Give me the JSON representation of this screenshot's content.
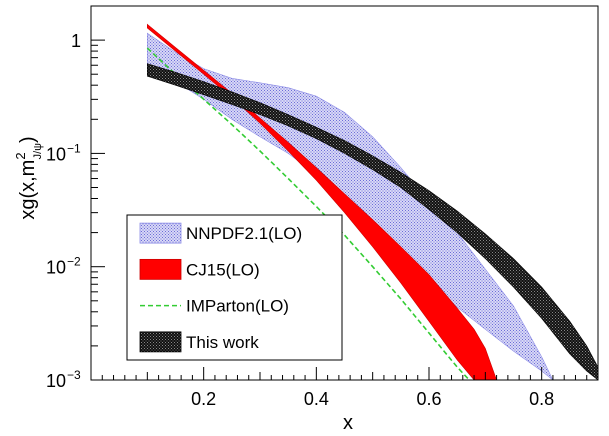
{
  "chart_data": {
    "type": "area",
    "xlabel": "x",
    "ylabel": {
      "main": "xg(x,m",
      "sub": "J/ψ",
      "sup": "2",
      "close": ")"
    },
    "xlim": [
      0.0,
      0.9
    ],
    "ylim": [
      0.001,
      2.0
    ],
    "yscale": "log",
    "grid": false,
    "legend_position": "bottom-left",
    "x_ticks": [
      {
        "value": 0.2,
        "label": "0.2"
      },
      {
        "value": 0.4,
        "label": "0.4"
      },
      {
        "value": 0.6,
        "label": "0.6"
      },
      {
        "value": 0.8,
        "label": "0.8"
      }
    ],
    "y_ticks": [
      {
        "value": 1,
        "base": "1",
        "exp": ""
      },
      {
        "value": 0.1,
        "base": "10",
        "exp": "−1"
      },
      {
        "value": 0.01,
        "base": "10",
        "exp": "−2"
      },
      {
        "value": 0.001,
        "base": "10",
        "exp": "−3"
      }
    ],
    "series": [
      {
        "name": "NNPDF2.1(LO)",
        "kind": "band",
        "color": "#8c8ce6",
        "x": [
          0.1,
          0.15,
          0.2,
          0.25,
          0.3,
          0.35,
          0.4,
          0.45,
          0.5,
          0.55,
          0.6,
          0.65,
          0.7,
          0.75,
          0.8,
          0.82
        ],
        "lower": [
          0.6,
          0.43,
          0.3,
          0.2,
          0.14,
          0.1,
          0.065,
          0.042,
          0.025,
          0.014,
          0.0075,
          0.0044,
          0.0028,
          0.0018,
          0.0012,
          0.001
        ],
        "upper": [
          1.15,
          0.78,
          0.56,
          0.46,
          0.42,
          0.38,
          0.32,
          0.23,
          0.14,
          0.075,
          0.038,
          0.02,
          0.0095,
          0.0045,
          0.0016,
          0.001
        ]
      },
      {
        "name": "CJ15(LO)",
        "kind": "band",
        "color": "#ff0000",
        "x": [
          0.1,
          0.15,
          0.2,
          0.25,
          0.3,
          0.35,
          0.4,
          0.45,
          0.5,
          0.55,
          0.6,
          0.65,
          0.68,
          0.7,
          0.72
        ],
        "lower": [
          1.28,
          0.8,
          0.5,
          0.31,
          0.185,
          0.105,
          0.058,
          0.03,
          0.015,
          0.0072,
          0.0033,
          0.0015,
          0.001,
          0.001,
          0.001
        ],
        "upper": [
          1.38,
          0.86,
          0.54,
          0.34,
          0.205,
          0.125,
          0.075,
          0.044,
          0.026,
          0.015,
          0.0085,
          0.0043,
          0.0028,
          0.0019,
          0.001
        ]
      },
      {
        "name": "IMParton(LO)",
        "kind": "line",
        "color": "#33cc33",
        "x": [
          0.1,
          0.15,
          0.2,
          0.25,
          0.3,
          0.35,
          0.4,
          0.45,
          0.5,
          0.55,
          0.6,
          0.65,
          0.68,
          0.7
        ],
        "values": [
          0.85,
          0.5,
          0.3,
          0.18,
          0.105,
          0.06,
          0.034,
          0.019,
          0.01,
          0.0052,
          0.0026,
          0.0013,
          0.0009,
          0.0007
        ]
      },
      {
        "name": "This work",
        "kind": "band",
        "color": "#000000",
        "x": [
          0.1,
          0.15,
          0.2,
          0.25,
          0.3,
          0.35,
          0.4,
          0.45,
          0.5,
          0.55,
          0.6,
          0.65,
          0.7,
          0.75,
          0.8,
          0.85,
          0.88,
          0.9
        ],
        "lower": [
          0.48,
          0.4,
          0.33,
          0.27,
          0.22,
          0.175,
          0.135,
          0.1,
          0.072,
          0.05,
          0.032,
          0.02,
          0.0118,
          0.0066,
          0.0035,
          0.0017,
          0.0012,
          0.001
        ],
        "upper": [
          0.62,
          0.52,
          0.43,
          0.35,
          0.28,
          0.22,
          0.17,
          0.13,
          0.095,
          0.068,
          0.047,
          0.031,
          0.0195,
          0.0118,
          0.0066,
          0.0033,
          0.002,
          0.0013
        ]
      }
    ]
  }
}
